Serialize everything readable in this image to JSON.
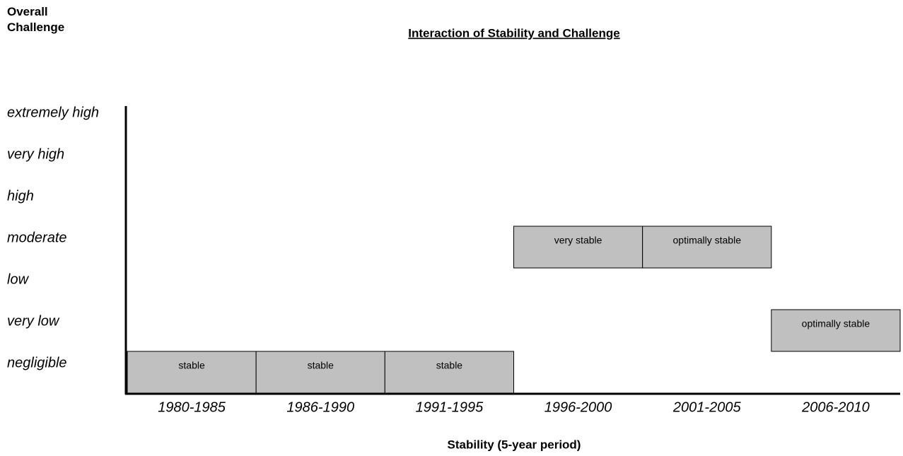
{
  "chart_data": {
    "type": "bar",
    "title": "Interaction of Stability and Challenge",
    "y_axis_label": "Overall Challenge",
    "x_axis_label": "Stability (5-year period)",
    "categories": [
      "1980-1985",
      "1986-1990",
      "1991-1995",
      "1996-2000",
      "2001-2005",
      "2006-2010"
    ],
    "y_categories": [
      "negligible",
      "very low",
      "low",
      "moderate",
      "high",
      "very high",
      "extremely high"
    ],
    "values": [
      "negligible",
      "negligible",
      "negligible",
      "moderate",
      "moderate",
      "very low"
    ],
    "value_labels": [
      "stable",
      "stable",
      "stable",
      "very stable",
      "optimally stable",
      "optimally stable"
    ],
    "color": "#c0c0c0"
  }
}
